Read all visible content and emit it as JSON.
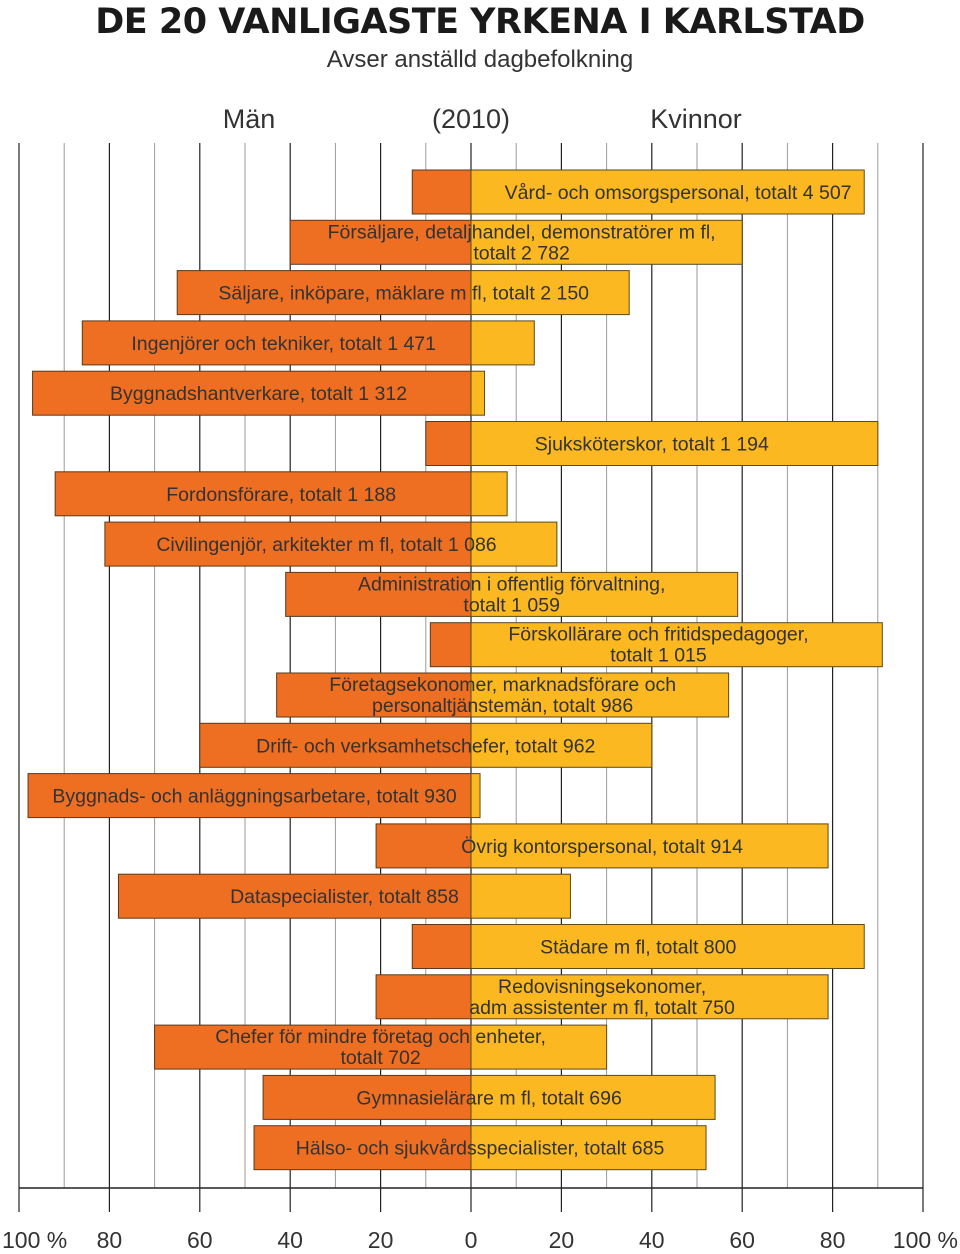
{
  "title": "DE 20 VANLIGASTE YRKENA I KARLSTAD",
  "subtitle": "Avser anställd dagbefolkning",
  "headers": {
    "left": "Män",
    "center": "(2010)",
    "right": "Kvinnor"
  },
  "colors": {
    "men": "#EE6E22",
    "women": "#FBB820",
    "grid": "#9a9a9a",
    "text": "#333333"
  },
  "chart_data": {
    "type": "bar",
    "orientation": "horizontal-diverging",
    "x_ticks": [
      "100 %",
      "80",
      "60",
      "40",
      "20",
      "0",
      "20",
      "40",
      "60",
      "80",
      "100 %"
    ],
    "xlim": [
      -100,
      100
    ],
    "grid": true,
    "series": [
      {
        "name": "Män",
        "values": [
          13,
          40,
          65,
          86,
          97,
          10,
          92,
          81,
          41,
          9,
          43,
          60,
          98,
          21,
          78,
          13,
          21,
          70,
          46,
          48
        ]
      },
      {
        "name": "Kvinnor",
        "values": [
          87,
          60,
          35,
          14,
          3,
          90,
          8,
          19,
          59,
          91,
          57,
          40,
          2,
          79,
          22,
          87,
          79,
          30,
          54,
          52
        ]
      }
    ],
    "categories": [
      {
        "lines": [
          "Vård- och omsorgspersonal, totalt 4 507"
        ]
      },
      {
        "lines": [
          "Försäljare, detaljhandel, demonstratörer m fl,",
          "totalt 2 782"
        ]
      },
      {
        "lines": [
          "Säljare, inköpare, mäklare m fl, totalt 2 150"
        ]
      },
      {
        "lines": [
          "Ingenjörer och tekniker, totalt 1 471"
        ]
      },
      {
        "lines": [
          "Byggnadshantverkare, totalt 1 312"
        ]
      },
      {
        "lines": [
          "Sjuksköterskor, totalt 1 194"
        ]
      },
      {
        "lines": [
          "Fordonsförare, totalt 1 188"
        ]
      },
      {
        "lines": [
          "Civilingenjör, arkitekter m fl, totalt 1 086"
        ]
      },
      {
        "lines": [
          "Administration i offentlig förvaltning,",
          "totalt 1 059"
        ]
      },
      {
        "lines": [
          "Förskollärare och fritidspedagoger,",
          "totalt 1 015"
        ]
      },
      {
        "lines": [
          "Företagsekonomer, marknadsförare och",
          "personaltjänstemän, totalt 986"
        ]
      },
      {
        "lines": [
          "Drift- och verksamhetschefer, totalt 962"
        ]
      },
      {
        "lines": [
          "Byggnads- och anläggningsarbetare, totalt 930"
        ]
      },
      {
        "lines": [
          "Övrig kontorspersonal, totalt 914"
        ]
      },
      {
        "lines": [
          "Dataspecialister, totalt 858"
        ]
      },
      {
        "lines": [
          "Städare m fl, totalt 800"
        ]
      },
      {
        "lines": [
          "Redovisningsekonomer,",
          "adm assistenter m fl, totalt 750"
        ]
      },
      {
        "lines": [
          "Chefer för mindre företag och enheter,",
          "totalt 702"
        ]
      },
      {
        "lines": [
          "Gymnasielärare m fl, totalt 696"
        ]
      },
      {
        "lines": [
          "Hälso- och sjukvårdsspecialister, totalt 685"
        ]
      }
    ]
  }
}
